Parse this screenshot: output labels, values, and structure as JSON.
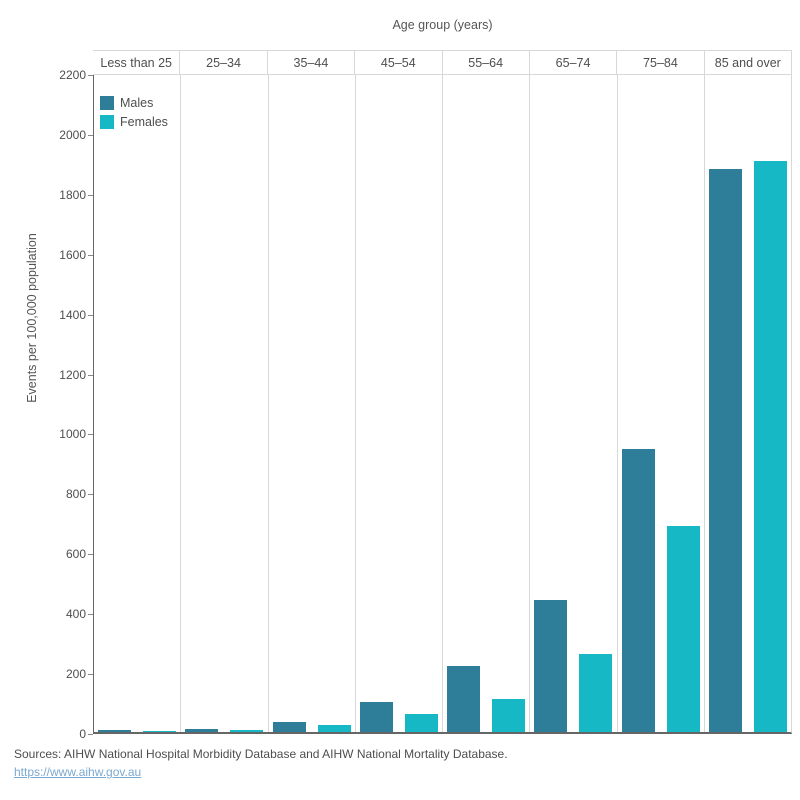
{
  "chart": {
    "title": "Age group (years)",
    "y_axis_title": "Events per 100,000 population",
    "footer": {
      "sources": "Sources: AIHW National Hospital Morbidity Database and AIHW National Mortality Database.",
      "link": "https://www.aihw.gov.au"
    }
  },
  "chart_data": {
    "type": "bar",
    "title": "Age group (years)",
    "xlabel": "Age group (years)",
    "ylabel": "Events per 100,000 population",
    "categories": [
      "Less than 25",
      "25–34",
      "35–44",
      "45–54",
      "55–64",
      "65–74",
      "75–84",
      "85 and over"
    ],
    "series": [
      {
        "name": "Males",
        "color": "#2f7e99",
        "values": [
          8,
          11,
          32,
          100,
          222,
          440,
          945,
          1880
        ]
      },
      {
        "name": "Females",
        "color": "#17b8c5",
        "values": [
          5,
          8,
          24,
          60,
          110,
          262,
          688,
          1905
        ]
      }
    ],
    "ylim": [
      0,
      2200
    ],
    "ytick_step": 200,
    "grid": "vertical-only",
    "legend_position": "top-left"
  }
}
